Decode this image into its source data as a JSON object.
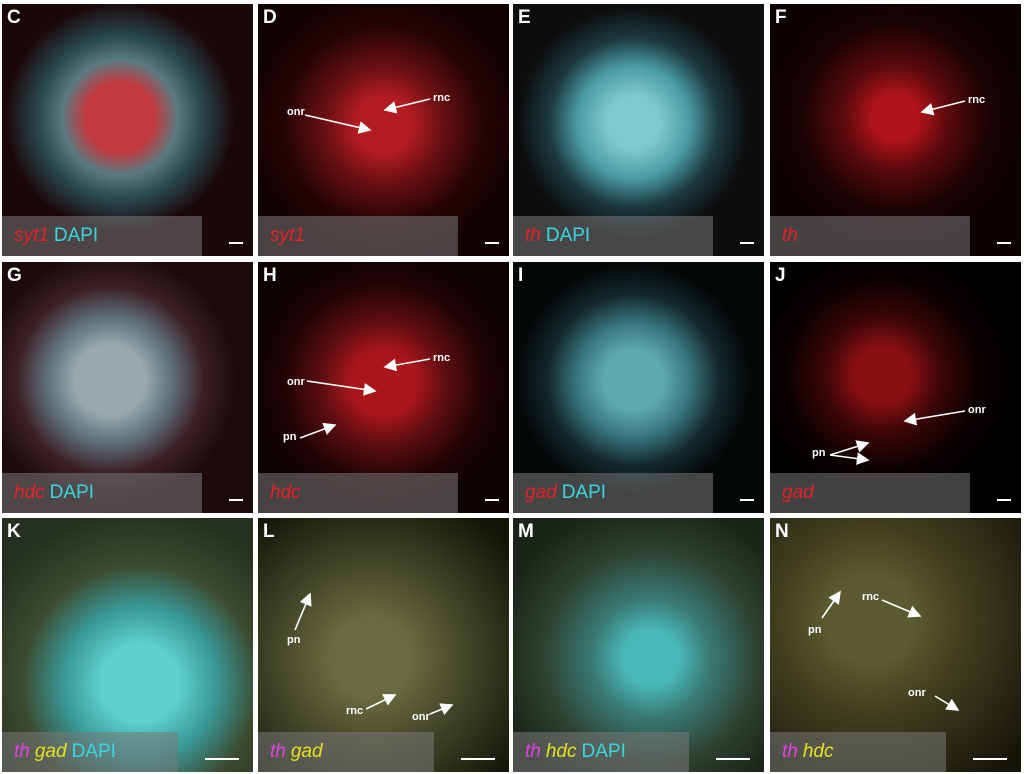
{
  "colors": {
    "red": "#e8202a",
    "cyan": "#3ad6e0",
    "magenta": "#e040e0",
    "yellow": "#e6e020"
  },
  "panels": [
    {
      "letter": "C",
      "caption": [
        {
          "text": "syt1",
          "color": "red",
          "italic": true
        },
        {
          "text": "DAPI",
          "color": "cyan",
          "italic": false
        }
      ]
    },
    {
      "letter": "D",
      "caption": [
        {
          "text": "syt1",
          "color": "red",
          "italic": true
        }
      ]
    },
    {
      "letter": "E",
      "caption": [
        {
          "text": "th",
          "color": "red",
          "italic": true
        },
        {
          "text": "DAPI",
          "color": "cyan",
          "italic": false
        }
      ]
    },
    {
      "letter": "F",
      "caption": [
        {
          "text": "th",
          "color": "red",
          "italic": true
        }
      ]
    },
    {
      "letter": "G",
      "caption": [
        {
          "text": "hdc",
          "color": "red",
          "italic": true
        },
        {
          "text": "DAPI",
          "color": "cyan",
          "italic": false
        }
      ]
    },
    {
      "letter": "H",
      "caption": [
        {
          "text": "hdc",
          "color": "red",
          "italic": true
        }
      ]
    },
    {
      "letter": "I",
      "caption": [
        {
          "text": "gad",
          "color": "red",
          "italic": true
        },
        {
          "text": "DAPI",
          "color": "cyan",
          "italic": false
        }
      ]
    },
    {
      "letter": "J",
      "caption": [
        {
          "text": "gad",
          "color": "red",
          "italic": true
        }
      ]
    },
    {
      "letter": "K",
      "caption": [
        {
          "text": "th",
          "color": "magenta",
          "italic": true
        },
        {
          "text": "gad",
          "color": "yellow",
          "italic": true
        },
        {
          "text": "DAPI",
          "color": "cyan",
          "italic": false
        }
      ]
    },
    {
      "letter": "L",
      "caption": [
        {
          "text": "th",
          "color": "magenta",
          "italic": true
        },
        {
          "text": "gad",
          "color": "yellow",
          "italic": true
        }
      ]
    },
    {
      "letter": "M",
      "caption": [
        {
          "text": "th",
          "color": "magenta",
          "italic": true
        },
        {
          "text": "hdc",
          "color": "yellow",
          "italic": true
        },
        {
          "text": "DAPI",
          "color": "cyan",
          "italic": false
        }
      ]
    },
    {
      "letter": "N",
      "caption": [
        {
          "text": "th",
          "color": "magenta",
          "italic": true
        },
        {
          "text": "hdc",
          "color": "yellow",
          "italic": true
        }
      ]
    }
  ],
  "annotations": {
    "onr": "onr",
    "rnc": "rnc",
    "pn": "pn"
  }
}
